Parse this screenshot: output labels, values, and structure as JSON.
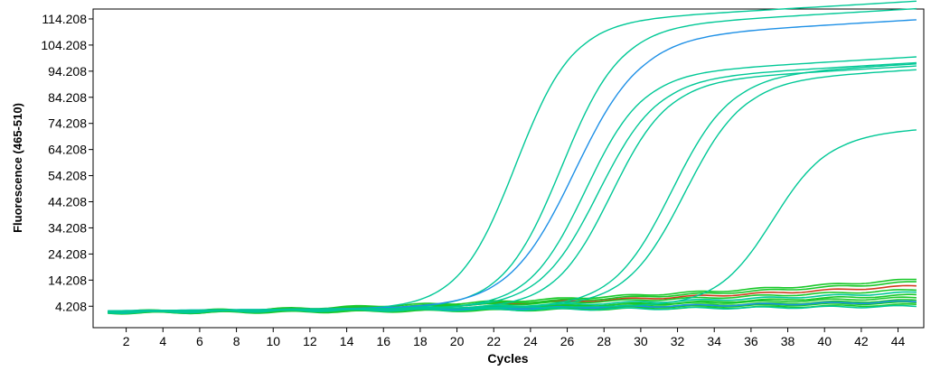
{
  "chart_data": {
    "type": "line",
    "title": "",
    "xlabel": "Cycles",
    "ylabel": "Fluorescence (465-510)",
    "xlim": [
      0.2,
      45.4
    ],
    "ylim": [
      -4,
      118
    ],
    "x_ticks": [
      2,
      4,
      6,
      8,
      10,
      12,
      14,
      16,
      18,
      20,
      22,
      24,
      26,
      28,
      30,
      32,
      34,
      36,
      38,
      40,
      42,
      44
    ],
    "x_tick_labels": [
      "2",
      "4",
      "6",
      "8",
      "10",
      "12",
      "14",
      "16",
      "18",
      "20",
      "22",
      "24",
      "26",
      "28",
      "30",
      "32",
      "34",
      "36",
      "38",
      "40",
      "42",
      "44"
    ],
    "y_ticks": [
      4.208,
      14.208,
      24.208,
      34.208,
      44.208,
      54.208,
      64.208,
      74.208,
      84.208,
      94.208,
      104.208,
      114.208
    ],
    "y_tick_labels": [
      "4.208",
      "14.208",
      "24.208",
      "34.208",
      "44.208",
      "54.208",
      "64.208",
      "74.208",
      "84.208",
      "94.208",
      "104.208",
      "114.208"
    ],
    "grid": false,
    "legend": "none",
    "colors": {
      "teal": "#00c896",
      "green": "#19c829",
      "blue": "#1e90e6",
      "red": "#d23a1e",
      "frame": "#000000"
    },
    "amplification_curves": [
      {
        "color": "#00c896",
        "threshold_cycle": 21.0,
        "plateau": 112,
        "slope": 1.55,
        "baseline": 2.0,
        "drift": 0.06
      },
      {
        "color": "#00c896",
        "threshold_cycle": 23.5,
        "plateau": 110,
        "slope": 1.6,
        "baseline": 2.2,
        "drift": 0.06
      },
      {
        "color": "#1e90e6",
        "threshold_cycle": 24.2,
        "plateau": 106,
        "slope": 1.8,
        "baseline": 2.4,
        "drift": 0.06
      },
      {
        "color": "#00c896",
        "threshold_cycle": 24.8,
        "plateau": 92,
        "slope": 1.55,
        "baseline": 2.1,
        "drift": 0.06
      },
      {
        "color": "#00c896",
        "threshold_cycle": 25.5,
        "plateau": 90,
        "slope": 1.6,
        "baseline": 2.3,
        "drift": 0.06
      },
      {
        "color": "#00c896",
        "threshold_cycle": 26.2,
        "plateau": 89,
        "slope": 1.55,
        "baseline": 2.0,
        "drift": 0.06
      },
      {
        "color": "#00c896",
        "threshold_cycle": 29.5,
        "plateau": 91,
        "slope": 1.6,
        "baseline": 2.2,
        "drift": 0.06
      },
      {
        "color": "#00c896",
        "threshold_cycle": 30.2,
        "plateau": 89,
        "slope": 1.6,
        "baseline": 2.4,
        "drift": 0.06
      },
      {
        "color": "#00c896",
        "threshold_cycle": 35.0,
        "plateau": 68,
        "slope": 1.5,
        "baseline": 2.3,
        "drift": 0.06
      }
    ],
    "baseline_curves": [
      {
        "color": "#d23a1e",
        "start": 2.0,
        "end": 12.0
      },
      {
        "color": "#19c829",
        "start": 2.2,
        "end": 14.5
      },
      {
        "color": "#19c829",
        "start": 1.8,
        "end": 13.5
      },
      {
        "color": "#19c829",
        "start": 2.4,
        "end": 10.5
      },
      {
        "color": "#19c829",
        "start": 1.6,
        "end": 8.5
      },
      {
        "color": "#19c829",
        "start": 2.1,
        "end": 7.5
      },
      {
        "color": "#19c829",
        "start": 1.9,
        "end": 6.5
      },
      {
        "color": "#19c829",
        "start": 2.0,
        "end": 5.6
      },
      {
        "color": "#19c829",
        "start": 1.7,
        "end": 4.8
      },
      {
        "color": "#1e90e6",
        "start": 2.2,
        "end": 6.0
      },
      {
        "color": "#00c896",
        "start": 1.8,
        "end": 9.5
      },
      {
        "color": "#00c896",
        "start": 2.3,
        "end": 4.2
      }
    ]
  }
}
